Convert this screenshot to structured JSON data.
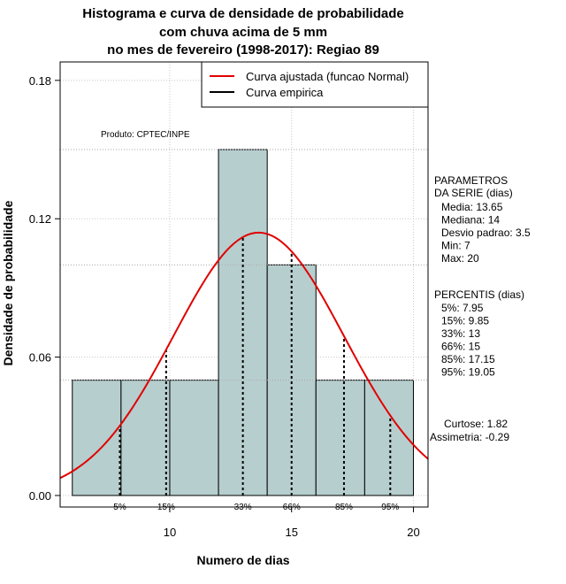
{
  "chart_data": {
    "type": "bar",
    "title_lines": [
      "Histograma e curva de densidade de probabilidade",
      "com chuva acima de 5 mm",
      "no mes de fevereiro (1998-2017): Regiao 89"
    ],
    "xlabel": "Numero de dias",
    "ylabel": "Densidade de probabilidade",
    "xlim": [
      5.5,
      20.6
    ],
    "ylim": [
      -0.005,
      0.188
    ],
    "x_ticks": [
      10,
      15,
      20
    ],
    "x_tick_labels": [
      "10",
      "15",
      "20"
    ],
    "y_ticks": [
      0.0,
      0.06,
      0.12,
      0.18
    ],
    "y_tick_labels": [
      "0.00",
      "0.06",
      "0.12",
      "0.18"
    ],
    "grid": true,
    "bins": [
      {
        "start": 6,
        "end": 8,
        "density": 0.05
      },
      {
        "start": 8,
        "end": 10,
        "density": 0.05
      },
      {
        "start": 10,
        "end": 12,
        "density": 0.05
      },
      {
        "start": 12,
        "end": 14,
        "density": 0.15
      },
      {
        "start": 14,
        "end": 16,
        "density": 0.1
      },
      {
        "start": 16,
        "end": 18,
        "density": 0.05
      },
      {
        "start": 18,
        "end": 20,
        "density": 0.05
      }
    ],
    "bar_color": "#b7cece",
    "normal_curve": {
      "name": "Curva ajustada (funcao Normal)",
      "mean": 13.65,
      "sd": 3.5,
      "color": "#e00000"
    },
    "empirical_curve": {
      "name": "Curva empirica",
      "color": "#000000"
    },
    "legend": {
      "position": "top-right",
      "entries": [
        {
          "label": "Curva ajustada (funcao Normal)",
          "color": "#e00000"
        },
        {
          "label": "Curva empirica",
          "color": "#000000"
        }
      ]
    },
    "percentile_lines": [
      {
        "label": "5%",
        "x": 7.95
      },
      {
        "label": "15%",
        "x": 9.85
      },
      {
        "label": "33%",
        "x": 13
      },
      {
        "label": "66%",
        "x": 15
      },
      {
        "label": "85%",
        "x": 17.15
      },
      {
        "label": "95%",
        "x": 19.05
      }
    ],
    "annotation": "Produto: CPTEC/INPE",
    "parameters": {
      "heading_lines": [
        "PARAMETROS",
        "DA SERIE (dias)"
      ],
      "lines": [
        "Media: 13.65",
        "Mediana: 14",
        "Desvio padrao: 3.5",
        "Min: 7",
        "Max: 20"
      ]
    },
    "percentis": {
      "heading": "PERCENTIS (dias)",
      "lines": [
        "5%: 7.95",
        "15%: 9.85",
        "33%: 13",
        "66%: 15",
        "85%: 17.15",
        "95%: 19.05"
      ]
    },
    "shape_stats": {
      "lines": [
        "Curtose: 1.82",
        "Assimetria: -0.29"
      ]
    }
  }
}
